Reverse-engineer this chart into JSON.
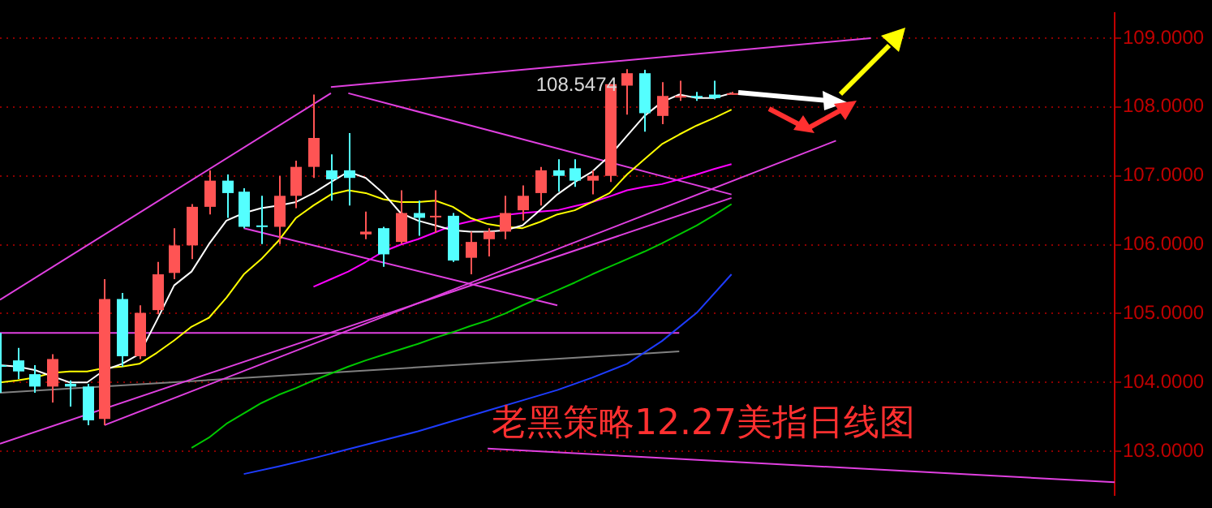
{
  "chart_data": {
    "type": "candlestick",
    "title": "老黑策略12.27美指日线图",
    "categories": [
      null,
      null,
      null,
      null,
      null,
      null,
      null,
      null,
      null,
      null,
      null,
      null,
      null,
      null,
      null,
      null,
      null,
      null,
      null,
      null,
      null,
      null,
      null,
      null,
      null,
      null,
      null,
      null,
      null,
      null,
      null,
      null,
      null,
      null,
      null,
      null,
      null,
      null,
      null,
      null,
      null,
      null,
      null,
      null,
      null,
      null,
      null,
      null,
      null,
      null,
      null,
      null,
      null,
      null,
      null,
      null,
      null,
      null,
      null,
      null,
      null,
      null,
      null,
      null,
      null
    ],
    "ohlc": [
      [
        104.25,
        104.72,
        103.85,
        104.23
      ],
      [
        104.32,
        104.5,
        104.05,
        104.16
      ],
      [
        104.12,
        104.25,
        103.85,
        103.94
      ],
      [
        103.94,
        104.41,
        103.71,
        104.34
      ],
      [
        103.98,
        104.03,
        103.65,
        103.94
      ],
      [
        103.94,
        103.98,
        103.38,
        103.45
      ],
      [
        103.47,
        105.5,
        103.38,
        105.21
      ],
      [
        105.21,
        105.3,
        104.23,
        104.38
      ],
      [
        104.38,
        105.12,
        104.34,
        105.01
      ],
      [
        105.05,
        105.75,
        104.99,
        105.57
      ],
      [
        105.59,
        106.24,
        105.5,
        105.99
      ],
      [
        105.99,
        106.59,
        105.79,
        106.55
      ],
      [
        106.55,
        107.08,
        106.44,
        106.93
      ],
      [
        106.93,
        107.02,
        106.39,
        106.75
      ],
      [
        106.77,
        106.82,
        106.24,
        106.26
      ],
      [
        106.28,
        106.71,
        106.01,
        106.26
      ],
      [
        106.26,
        107.0,
        106.01,
        106.71
      ],
      [
        106.71,
        107.22,
        106.53,
        107.13
      ],
      [
        107.13,
        108.18,
        106.97,
        107.55
      ],
      [
        107.08,
        107.31,
        106.64,
        106.95
      ],
      [
        107.08,
        107.62,
        106.57,
        106.97
      ],
      [
        106.15,
        106.48,
        106.08,
        106.19
      ],
      [
        106.24,
        106.26,
        105.68,
        105.86
      ],
      [
        106.04,
        106.79,
        106.01,
        106.46
      ],
      [
        106.46,
        106.64,
        106.13,
        106.39
      ],
      [
        106.4,
        106.79,
        106.17,
        106.42
      ],
      [
        106.42,
        106.46,
        105.75,
        105.77
      ],
      [
        105.81,
        106.19,
        105.57,
        106.04
      ],
      [
        106.08,
        106.24,
        105.83,
        106.19
      ],
      [
        106.19,
        106.71,
        106.08,
        106.46
      ],
      [
        106.5,
        106.86,
        106.35,
        106.71
      ],
      [
        106.75,
        107.13,
        106.57,
        107.08
      ],
      [
        107.08,
        107.24,
        106.77,
        107.0
      ],
      [
        107.11,
        107.24,
        106.84,
        106.93
      ],
      [
        106.93,
        107.08,
        106.73,
        107.0
      ],
      [
        107.0,
        108.33,
        106.91,
        108.33
      ],
      [
        108.31,
        108.5474,
        107.89,
        108.49
      ],
      [
        108.49,
        108.54,
        107.64,
        107.91
      ],
      [
        107.87,
        108.36,
        107.75,
        108.16
      ],
      [
        108.14,
        108.38,
        108.09,
        108.16
      ],
      [
        108.16,
        108.22,
        108.09,
        108.14
      ],
      [
        108.18,
        108.38,
        108.11,
        108.13
      ],
      [
        108.18,
        108.22,
        108.18,
        108.2
      ],
      null,
      null,
      null,
      null,
      null,
      null,
      null,
      null,
      null,
      null,
      null,
      null,
      null,
      null,
      null,
      null,
      null,
      null,
      null,
      null,
      null,
      null
    ],
    "colors": [
      "#54ffff",
      "#54ffff",
      "#54ffff",
      "#ff5454",
      "#54ffff",
      "#54ffff",
      "#ff5454",
      "#54ffff",
      "#ff5454",
      "#ff5454",
      "#ff5454",
      "#ff5454",
      "#ff5454",
      "#54ffff",
      "#54ffff",
      "#54ffff",
      "#ff5454",
      "#ff5454",
      "#ff5454",
      "#54ffff",
      "#54ffff",
      "#ff5454",
      "#54ffff",
      "#ff5454",
      "#54ffff",
      "#ff5454",
      "#54ffff",
      "#ff5454",
      "#ff5454",
      "#ff5454",
      "#ff5454",
      "#ff5454",
      "#54ffff",
      "#54ffff",
      "#ff5454",
      "#ff5454",
      "#ff5454",
      "#54ffff",
      "#ff5454",
      "#ff5454",
      "#54ffff",
      "#54ffff",
      "#ff5454",
      null,
      null,
      null,
      null,
      null,
      null,
      null,
      null,
      null,
      null,
      null,
      null,
      null,
      null,
      null,
      null,
      null,
      null,
      null,
      null,
      null,
      null
    ],
    "series": [
      {
        "type": "line",
        "color": "#ffffff",
        "values": [
          104.25,
          104.23,
          104.18,
          104.09,
          104.0,
          104.0,
          104.18,
          104.27,
          104.41,
          104.9,
          105.41,
          105.61,
          106.01,
          106.35,
          106.46,
          106.53,
          106.57,
          106.62,
          106.75,
          106.91,
          107.06,
          106.97,
          106.75,
          106.46,
          106.35,
          106.28,
          106.21,
          106.19,
          106.19,
          106.21,
          106.28,
          106.5,
          106.73,
          106.91,
          107.06,
          107.29,
          107.58,
          107.87,
          108.07,
          108.18,
          108.13,
          108.13,
          108.2,
          null,
          null,
          null,
          null,
          null,
          null,
          null,
          null,
          null,
          null,
          null,
          null,
          null,
          null,
          null,
          null,
          null,
          null,
          null,
          null,
          null,
          null
        ]
      },
      {
        "type": "line",
        "color": "#ffff00",
        "values": [
          104.0,
          104.03,
          104.07,
          104.14,
          104.16,
          104.16,
          104.21,
          104.23,
          104.27,
          104.43,
          104.61,
          104.81,
          104.94,
          105.23,
          105.57,
          105.79,
          106.06,
          106.39,
          106.57,
          106.73,
          106.79,
          106.75,
          106.66,
          106.62,
          106.62,
          106.64,
          106.55,
          106.39,
          106.3,
          106.26,
          106.24,
          106.33,
          106.44,
          106.5,
          106.62,
          106.75,
          107.02,
          107.24,
          107.46,
          107.6,
          107.73,
          107.84,
          107.96,
          null,
          null,
          null,
          null,
          null,
          null,
          null,
          null,
          null,
          null,
          null,
          null,
          null,
          null,
          null,
          null,
          null,
          null,
          null,
          null,
          null,
          null
        ]
      },
      {
        "type": "line",
        "color": "#ff00ff",
        "values": [
          null,
          null,
          null,
          null,
          null,
          null,
          null,
          null,
          null,
          null,
          null,
          null,
          null,
          null,
          null,
          null,
          null,
          null,
          105.39,
          105.5,
          105.61,
          105.75,
          105.9,
          106.0,
          106.08,
          106.18,
          106.28,
          106.34,
          106.39,
          106.43,
          106.46,
          106.48,
          106.5,
          106.56,
          106.62,
          106.7,
          106.79,
          106.84,
          106.88,
          106.95,
          107.02,
          107.1,
          107.17,
          null,
          null,
          null,
          null,
          null,
          null,
          null,
          null,
          null,
          null,
          null,
          null,
          null,
          null,
          null,
          null,
          null,
          null,
          null,
          null,
          null,
          null
        ]
      },
      {
        "type": "line",
        "color": "#00c800",
        "values": [
          null,
          null,
          null,
          null,
          null,
          null,
          null,
          null,
          null,
          null,
          null,
          103.05,
          103.2,
          103.4,
          103.55,
          103.7,
          103.82,
          103.92,
          104.03,
          104.13,
          104.23,
          104.32,
          104.4,
          104.48,
          104.56,
          104.65,
          104.73,
          104.82,
          104.9,
          105.0,
          105.12,
          105.23,
          105.34,
          105.45,
          105.57,
          105.68,
          105.79,
          105.9,
          106.02,
          106.15,
          106.28,
          106.43,
          106.59,
          null,
          null,
          null,
          null,
          null,
          null,
          null,
          null,
          null,
          null,
          null,
          null,
          null,
          null,
          null,
          null,
          null,
          null,
          null,
          null,
          null,
          null
        ]
      },
      {
        "type": "line",
        "color": "#1e3cff",
        "values": [
          null,
          null,
          null,
          null,
          null,
          null,
          null,
          null,
          null,
          null,
          null,
          null,
          null,
          null,
          102.67,
          null,
          102.78,
          null,
          102.9,
          null,
          103.03,
          null,
          103.16,
          null,
          103.29,
          null,
          103.44,
          null,
          103.59,
          null,
          103.74,
          null,
          103.89,
          null,
          104.07,
          null,
          104.27,
          null,
          104.6,
          null,
          105.01,
          null,
          105.57,
          null,
          null,
          null,
          null,
          null,
          null,
          null,
          null,
          null,
          null,
          null,
          null,
          null,
          null,
          null,
          null,
          null,
          null,
          null,
          null,
          null,
          null
        ]
      },
      {
        "type": "line",
        "color": "#e040e0",
        "values": [
          105.2,
          null,
          null,
          null,
          null,
          null,
          null,
          null,
          null,
          null,
          null,
          null,
          null,
          null,
          null,
          null,
          null,
          null,
          null,
          108.2,
          null,
          null,
          null,
          null,
          null,
          null,
          null,
          null,
          null,
          null,
          null,
          null,
          null,
          null,
          null,
          null,
          null,
          null,
          null,
          null,
          null,
          null,
          null,
          null,
          null,
          null,
          null,
          null,
          null,
          null,
          null,
          null,
          null,
          null,
          null,
          null,
          null,
          null,
          null,
          null,
          null,
          null,
          null,
          null,
          null
        ]
      },
      {
        "type": "line",
        "color": "#e040e0",
        "values": [
          null,
          null,
          null,
          null,
          null,
          null,
          null,
          null,
          null,
          null,
          null,
          null,
          null,
          null,
          null,
          null,
          null,
          null,
          null,
          108.29,
          null,
          null,
          null,
          null,
          null,
          null,
          null,
          null,
          null,
          null,
          null,
          null,
          null,
          null,
          null,
          null,
          null,
          null,
          null,
          null,
          null,
          null,
          null,
          null,
          null,
          null,
          null,
          null,
          null,
          null,
          109.0,
          null,
          null,
          null,
          null,
          null,
          null,
          null,
          null,
          null,
          null,
          null,
          null,
          null,
          null
        ]
      },
      {
        "type": "line",
        "color": "#e040e0",
        "values": [
          null,
          null,
          null,
          null,
          null,
          null,
          null,
          null,
          null,
          null,
          null,
          null,
          null,
          null,
          null,
          null,
          null,
          null,
          null,
          null,
          108.2,
          null,
          null,
          null,
          null,
          null,
          null,
          null,
          null,
          null,
          null,
          null,
          null,
          null,
          null,
          null,
          null,
          null,
          null,
          null,
          null,
          null,
          106.73,
          null,
          null,
          null,
          null,
          null,
          null,
          null,
          null,
          null,
          null,
          null,
          null,
          null,
          null,
          null,
          null,
          null,
          null,
          null,
          null,
          null,
          null
        ]
      },
      {
        "type": "line",
        "color": "#e040e0",
        "values": [
          null,
          null,
          null,
          null,
          null,
          null,
          null,
          null,
          null,
          null,
          null,
          null,
          null,
          null,
          106.24,
          null,
          null,
          null,
          null,
          null,
          null,
          null,
          null,
          null,
          null,
          null,
          null,
          null,
          null,
          null,
          null,
          null,
          105.12,
          null,
          null,
          null,
          null,
          null,
          null,
          null,
          null,
          null,
          null,
          null,
          null,
          null,
          null,
          null,
          null,
          null,
          null,
          null,
          null,
          null,
          null,
          null,
          null,
          null,
          null,
          null,
          null,
          null,
          null,
          null,
          null
        ]
      },
      {
        "type": "line",
        "color": "#e040e0",
        "values": [
          null,
          null,
          null,
          null,
          null,
          null,
          103.38,
          null,
          null,
          null,
          null,
          null,
          null,
          null,
          null,
          null,
          null,
          null,
          null,
          null,
          null,
          null,
          null,
          null,
          null,
          null,
          null,
          null,
          null,
          null,
          null,
          null,
          null,
          null,
          null,
          null,
          null,
          null,
          null,
          null,
          null,
          null,
          null,
          null,
          null,
          null,
          null,
          null,
          107.51,
          null,
          null,
          null,
          null,
          null,
          null,
          null,
          null,
          null,
          null,
          null,
          null,
          null,
          null,
          null,
          null
        ]
      },
      {
        "type": "line",
        "color": "#e040e0",
        "values": [
          103.11,
          null,
          null,
          null,
          null,
          null,
          null,
          null,
          null,
          null,
          null,
          null,
          null,
          null,
          null,
          null,
          null,
          null,
          null,
          null,
          null,
          null,
          null,
          null,
          null,
          null,
          null,
          null,
          null,
          null,
          null,
          null,
          null,
          null,
          null,
          null,
          null,
          null,
          null,
          null,
          null,
          null,
          106.68,
          null,
          null,
          null,
          null,
          null,
          null,
          null,
          null,
          null,
          null,
          null,
          null,
          null,
          null,
          null,
          null,
          null,
          null,
          null,
          null,
          null,
          null
        ]
      },
      {
        "type": "line",
        "color": "#e040e0",
        "values": [
          104.72,
          null,
          null,
          null,
          null,
          null,
          null,
          null,
          null,
          null,
          null,
          null,
          null,
          null,
          null,
          null,
          null,
          null,
          null,
          null,
          null,
          null,
          null,
          null,
          null,
          null,
          null,
          null,
          null,
          null,
          null,
          null,
          null,
          null,
          null,
          null,
          null,
          null,
          null,
          104.72,
          null,
          null,
          null,
          null,
          null,
          null,
          null,
          null,
          null,
          null,
          null,
          null,
          null,
          null,
          null,
          null,
          null,
          null,
          null,
          null,
          null,
          null,
          null,
          null,
          null
        ]
      },
      {
        "type": "line",
        "color": "#808080",
        "values": [
          103.85,
          null,
          null,
          null,
          null,
          null,
          null,
          null,
          null,
          null,
          null,
          null,
          null,
          null,
          null,
          null,
          null,
          null,
          null,
          null,
          null,
          null,
          null,
          null,
          null,
          null,
          null,
          null,
          null,
          null,
          null,
          null,
          null,
          null,
          null,
          null,
          null,
          null,
          null,
          104.45,
          null,
          null,
          null,
          null,
          null,
          null,
          null,
          null,
          null,
          null,
          null,
          null,
          null,
          null,
          null,
          null,
          null,
          null,
          null,
          null,
          null,
          null,
          null,
          null,
          null
        ]
      },
      {
        "type": "line",
        "color": "#e040e0",
        "values": [
          null,
          null,
          null,
          null,
          null,
          null,
          null,
          null,
          null,
          null,
          null,
          null,
          null,
          null,
          null,
          null,
          null,
          null,
          null,
          null,
          null,
          null,
          null,
          null,
          null,
          null,
          null,
          null,
          103.04,
          null,
          null,
          null,
          null,
          null,
          null,
          null,
          null,
          null,
          null,
          null,
          null,
          null,
          null,
          null,
          null,
          null,
          null,
          null,
          null,
          null,
          null,
          null,
          null,
          null,
          null,
          null,
          null,
          null,
          null,
          null,
          null,
          null,
          null,
          null,
          102.55
        ]
      }
    ],
    "annotations": [
      {
        "text": "108.5474",
        "y": 108.5474
      }
    ],
    "ylim": [
      102.37,
      109.36
    ],
    "yticks": [
      {
        "value": 103,
        "label": "103.0000"
      },
      {
        "value": 104,
        "label": "104.0000"
      },
      {
        "value": 105,
        "label": "105.0000"
      },
      {
        "value": 106,
        "label": "106.0000"
      },
      {
        "value": 107,
        "label": "107.0000"
      },
      {
        "value": 108,
        "label": "108.0000"
      },
      {
        "value": 109,
        "label": "109.0000"
      }
    ],
    "grid": "y",
    "tick_labels": "y",
    "legend": false,
    "marker": "none"
  }
}
